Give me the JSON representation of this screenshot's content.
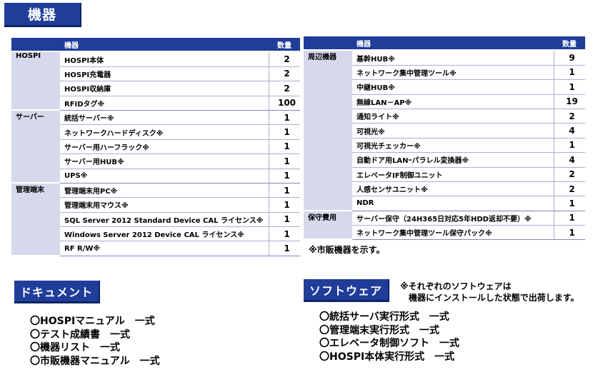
{
  "header": {
    "title": "機器"
  },
  "left_table": {
    "columns": [
      "",
      "機器",
      "数量"
    ],
    "groups": [
      {
        "category": "HOSPI",
        "items": [
          {
            "name": "HOSPI本体",
            "qty": "2"
          },
          {
            "name": "HOSPI充電器",
            "qty": "2"
          },
          {
            "name": "HOSPI収納庫",
            "qty": "2"
          },
          {
            "name": "RFIDタグ※",
            "qty": "100"
          }
        ]
      },
      {
        "category": "サーバー",
        "items": [
          {
            "name": "統括サーバー※",
            "qty": "1"
          },
          {
            "name": "ネットワークハードディスク※",
            "qty": "1"
          },
          {
            "name": "サーバー用ハーフラック※",
            "qty": "1"
          },
          {
            "name": "サーバー用HUB※",
            "qty": "1"
          },
          {
            "name": "UPS※",
            "qty": "1"
          }
        ]
      },
      {
        "category": "管理端末",
        "items": [
          {
            "name": "管理端末用PC※",
            "qty": "1"
          },
          {
            "name": "管理端末用マウス※",
            "qty": "1"
          },
          {
            "name": "SQL Server 2012 Standard Device CAL ライセンス※",
            "qty": "1"
          },
          {
            "name": "Windows Server 2012 Device CAL ライセンス※",
            "qty": "1"
          },
          {
            "name": "RF R/W※",
            "qty": "1"
          }
        ]
      }
    ]
  },
  "right_table": {
    "columns": [
      "",
      "機器",
      "数量"
    ],
    "groups": [
      {
        "category": "周辺機器",
        "items": [
          {
            "name": "基幹HUB※",
            "qty": "9"
          },
          {
            "name": "ネットワーク集中管理ツール※",
            "qty": "1"
          },
          {
            "name": "中継HUB※",
            "qty": "1"
          },
          {
            "name": "無線LAN－AP※",
            "qty": "19"
          },
          {
            "name": "通知ライト※",
            "qty": "2"
          },
          {
            "name": "可視光※",
            "qty": "4"
          },
          {
            "name": "可視光チェッカー※",
            "qty": "1"
          },
          {
            "name": "自動ドア用LANｰパラレル変換器※",
            "qty": "4"
          },
          {
            "name": "エレベータIF制御ユニット",
            "qty": "2"
          },
          {
            "name": "人感センサユニット※",
            "qty": "2"
          },
          {
            "name": "NDR",
            "qty": "1"
          }
        ]
      },
      {
        "category": "保守費用",
        "items": [
          {
            "name": "サーバー保守（24H365日対応5年HDD返却不要）※",
            "qty": "1"
          },
          {
            "name": "ネットワーク集中管理ツール保守パック※",
            "qty": "1"
          }
        ]
      }
    ],
    "note": "※市販機器を示す。"
  },
  "documents": {
    "title": "ドキュメント",
    "items": [
      "〇HOSPIマニュアル　一式",
      "〇テスト成績書　一式",
      "〇機器リスト　一式",
      "〇市販機器マニュアル　一式"
    ]
  },
  "software": {
    "title": "ソフトウェア",
    "note_line1": "※それぞれのソフトウェアは",
    "note_line2": "機器にインストールした状態で出荷します。",
    "items": [
      "〇統括サーバ実行形式　一式",
      "〇管理端末実行形式　一式",
      "〇エレベータ制御ソフト　一式",
      "〇HOSPI本体実行形式　一式"
    ]
  },
  "colors": {
    "header_blue": "#1f3d99",
    "category_bg": "#d6d8ec"
  }
}
